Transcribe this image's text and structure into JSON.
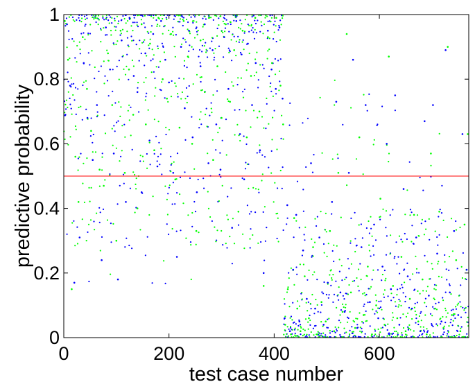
{
  "chart_data": {
    "type": "scatter",
    "title": "",
    "xlabel": "test case number",
    "ylabel": "predictive probability",
    "xlim": [
      0,
      770
    ],
    "ylim": [
      0,
      1
    ],
    "xticks": [
      0,
      200,
      400,
      600
    ],
    "xtick_labels": [
      "0",
      "200",
      "400",
      "600"
    ],
    "yticks": [
      0,
      0.2,
      0.4,
      0.6,
      0.8,
      1
    ],
    "ytick_labels": [
      "0",
      "0.2",
      "0.4",
      "0.6",
      "0.8",
      "1"
    ],
    "grid": false,
    "legend": "none",
    "colors": {
      "series_a": "#0000ff",
      "series_b": "#00ff00",
      "threshold": "#ff0000"
    },
    "threshold_line": {
      "y": 0.5
    },
    "points_per_series": 770,
    "class_boundary": 418,
    "series": [
      {
        "color": "#0000ff",
        "x": [
          3,
          6,
          12,
          20,
          30,
          38,
          45,
          55,
          63,
          72,
          80,
          88,
          95,
          103,
          110,
          118,
          125,
          133,
          140,
          148,
          155,
          163,
          170,
          178,
          185,
          193,
          200,
          208,
          215,
          223,
          230,
          238,
          245,
          253,
          260,
          268,
          275,
          283,
          290,
          298,
          305,
          313,
          320,
          328,
          335,
          343,
          350,
          358,
          365,
          373,
          380,
          388,
          395,
          403,
          410,
          416,
          420,
          425,
          430,
          436,
          442,
          448,
          455,
          462,
          470,
          478,
          486,
          494,
          502,
          510,
          518,
          526,
          534,
          542,
          550,
          558,
          566,
          574,
          582,
          590,
          598,
          606,
          614,
          622,
          630,
          638,
          646,
          654,
          662,
          670,
          678,
          686,
          694,
          702,
          710,
          718,
          726,
          734,
          742,
          750,
          758,
          766
        ],
        "y": [
          0.69,
          0.97,
          0.78,
          0.17,
          0.31,
          0.85,
          0.68,
          0.55,
          0.72,
          0.24,
          0.96,
          0.83,
          0.57,
          0.18,
          0.92,
          0.42,
          0.99,
          0.81,
          0.76,
          0.45,
          0.88,
          0.61,
          0.94,
          0.53,
          0.98,
          0.86,
          0.79,
          0.51,
          0.25,
          0.9,
          0.71,
          0.95,
          0.62,
          0.45,
          0.84,
          0.97,
          0.54,
          0.89,
          0.66,
          0.52,
          0.93,
          0.77,
          0.34,
          0.98,
          0.63,
          0.49,
          0.91,
          0.72,
          0.85,
          0.58,
          0.2,
          0.95,
          0.83,
          0.77,
          0.96,
          0.74,
          0.06,
          0.41,
          0.02,
          0.21,
          0.38,
          0.05,
          0.27,
          0.12,
          0.54,
          0.09,
          0.31,
          0.04,
          0.17,
          0.42,
          0.73,
          0.14,
          0.08,
          0.51,
          0.86,
          0.03,
          0.28,
          0.72,
          0.11,
          0.35,
          0.06,
          0.22,
          0.6,
          0.15,
          0.75,
          0.04,
          0.46,
          0.19,
          0.09,
          0.31,
          0.02,
          0.67,
          0.13,
          0.72,
          0.26,
          0.05,
          0.89,
          0.14,
          0.33,
          0.07,
          0.63,
          0.21
        ]
      },
      {
        "color": "#00ff00",
        "x": [
          2,
          8,
          15,
          22,
          28,
          36,
          44,
          52,
          60,
          68,
          76,
          84,
          92,
          100,
          108,
          116,
          124,
          132,
          140,
          148,
          156,
          164,
          172,
          180,
          188,
          196,
          204,
          212,
          220,
          228,
          236,
          244,
          252,
          260,
          268,
          276,
          284,
          292,
          300,
          308,
          316,
          324,
          332,
          340,
          348,
          356,
          364,
          372,
          380,
          388,
          396,
          404,
          412,
          417,
          421,
          426,
          432,
          438,
          444,
          450,
          458,
          466,
          474,
          482,
          490,
          498,
          506,
          514,
          522,
          530,
          538,
          546,
          554,
          562,
          570,
          578,
          586,
          594,
          602,
          610,
          618,
          626,
          634,
          642,
          650,
          658,
          666,
          674,
          682,
          690,
          698,
          706,
          714,
          722,
          730,
          738,
          746,
          754,
          762,
          768
        ],
        "y": [
          0.98,
          0.86,
          0.15,
          0.56,
          0.42,
          0.93,
          0.77,
          0.64,
          0.99,
          0.52,
          0.47,
          0.88,
          0.72,
          0.3,
          0.95,
          0.51,
          0.83,
          0.69,
          0.4,
          0.97,
          0.66,
          0.91,
          0.58,
          0.99,
          0.8,
          0.74,
          0.94,
          0.49,
          0.65,
          0.98,
          0.87,
          0.6,
          0.33,
          0.92,
          0.76,
          0.99,
          0.55,
          0.84,
          0.68,
          0.97,
          0.73,
          0.89,
          0.39,
          0.95,
          0.62,
          0.81,
          0.99,
          0.7,
          0.16,
          0.93,
          0.85,
          0.99,
          0.78,
          0.66,
          0.04,
          0.15,
          0.01,
          0.37,
          0.09,
          0.02,
          0.19,
          0.06,
          0.28,
          0.01,
          0.11,
          0.05,
          0.33,
          0.02,
          0.51,
          0.08,
          0.94,
          0.14,
          0.03,
          0.62,
          0.07,
          0.22,
          0.01,
          0.1,
          0.43,
          0.04,
          0.87,
          0.16,
          0.06,
          0.25,
          0.02,
          0.12,
          0.38,
          0.05,
          0.18,
          0.01,
          0.57,
          0.09,
          0.39,
          0.03,
          0.9,
          0.07,
          0.24,
          0.02,
          0.35,
          0.63
        ]
      }
    ]
  }
}
